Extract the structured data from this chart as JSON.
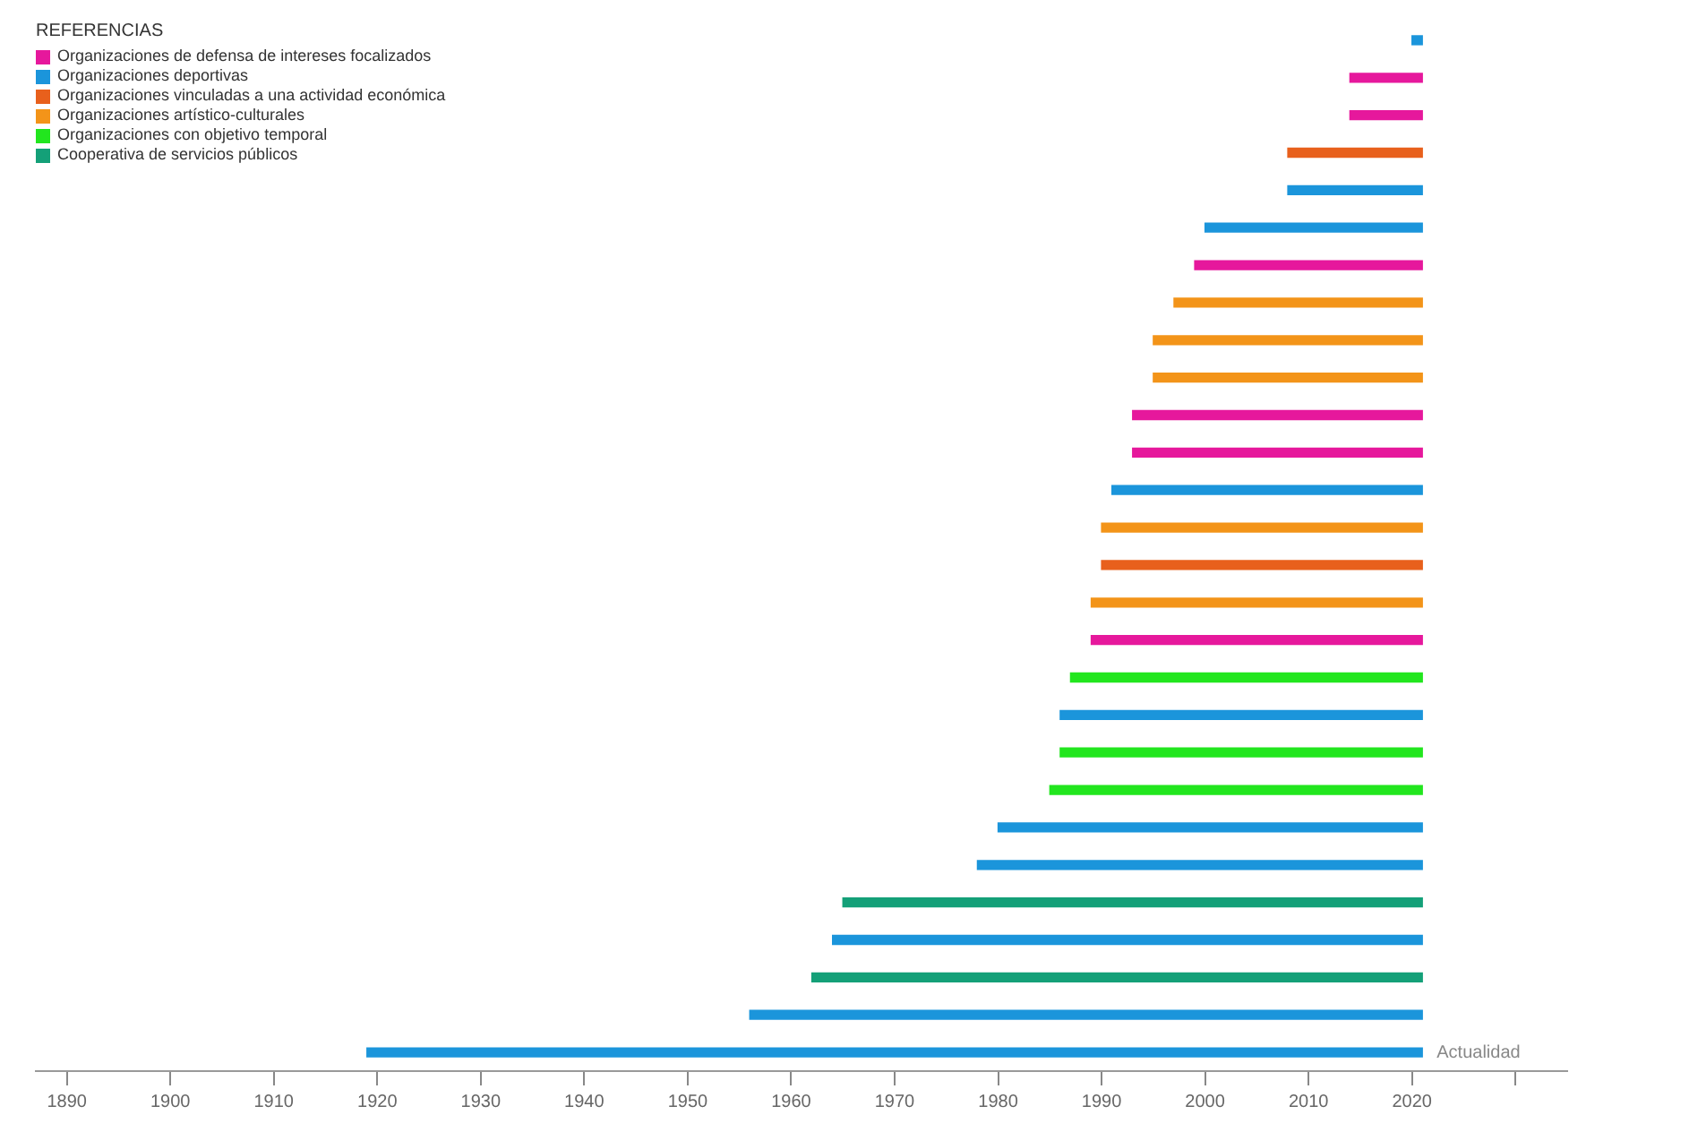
{
  "chart_data": [
    {
      "type": "other",
      "legend_title": "REFERENCIAS",
      "categories": [
        "Organizaciones de defensa de intereses focalizados",
        "Organizaciones deportivas",
        "Organizaciones vinculadas a una actividad económica",
        "Organizaciones artístico-culturales",
        "Organizaciones con objetivo temporal",
        "Cooperativa de servicios públicos"
      ],
      "colors": [
        "#e6189c",
        "#1b95db",
        "#e8601c",
        "#f39419",
        "#22e61e",
        "#14a078"
      ]
    },
    {
      "type": "bar",
      "orientation": "horizontal",
      "tick_labels": "x",
      "grid": false,
      "categories": [
        null,
        null,
        null,
        null,
        null,
        null,
        null,
        null,
        null,
        null,
        null,
        null,
        null,
        null,
        null,
        null,
        null,
        null,
        null,
        null,
        null,
        null,
        null,
        null,
        null,
        null,
        null,
        null
      ],
      "base": [
        2020,
        2014,
        2014,
        2008,
        2008,
        2000,
        1999,
        1997,
        1995,
        1995,
        1993,
        1993,
        1991,
        1990,
        1990,
        1989,
        1989,
        1987,
        1986,
        1986,
        1985,
        1980,
        1978,
        1965,
        1964,
        1962,
        1956,
        1919
      ],
      "values": [
        1,
        7,
        7,
        13,
        13,
        21,
        22,
        24,
        26,
        26,
        28,
        28,
        30,
        31,
        31,
        32,
        32,
        34,
        35,
        35,
        36,
        41,
        43,
        56,
        57,
        59,
        65,
        102
      ],
      "colors": [
        "#1b95db",
        "#e6189c",
        "#e6189c",
        "#e8601c",
        "#1b95db",
        "#1b95db",
        "#e6189c",
        "#f39419",
        "#f39419",
        "#f39419",
        "#e6189c",
        "#e6189c",
        "#1b95db",
        "#f39419",
        "#e8601c",
        "#f39419",
        "#e6189c",
        "#22e61e",
        "#1b95db",
        "#22e61e",
        "#22e61e",
        "#1b95db",
        "#1b95db",
        "#14a078",
        "#1b95db",
        "#14a078",
        "#1b95db",
        "#1b95db"
      ],
      "xlim": [
        1887,
        2035
      ],
      "xticks": [
        1890,
        1900,
        1910,
        1920,
        1930,
        1940,
        1950,
        1960,
        1970,
        1980,
        1990,
        2000,
        2010,
        2020,
        {
          "value": 2030,
          "label": null
        }
      ],
      "annotations": [
        "Actualidad"
      ]
    }
  ]
}
